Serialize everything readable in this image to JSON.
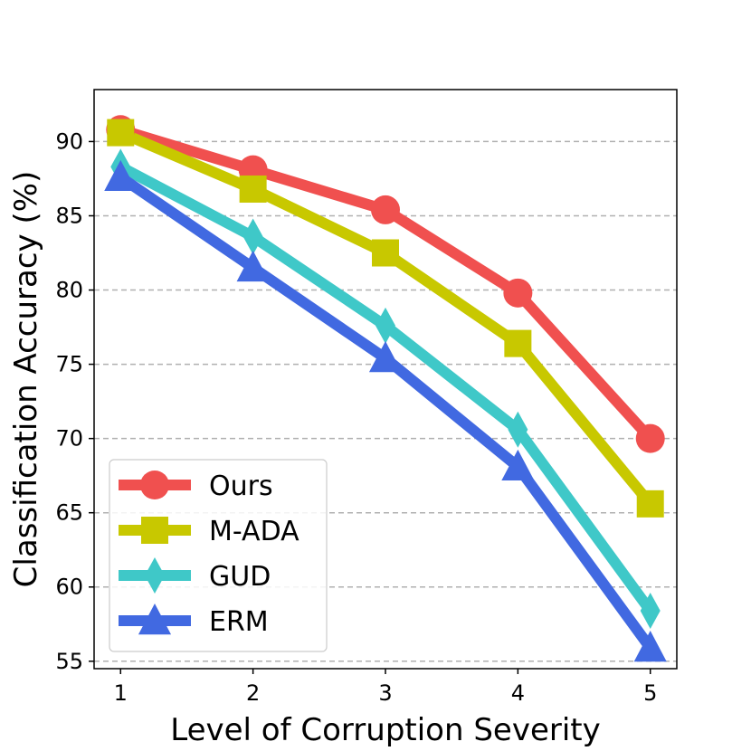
{
  "chart_data": {
    "type": "line",
    "title": "",
    "xlabel": "Level of Corruption Severity",
    "ylabel": "Classification Accuracy (%)",
    "x": [
      1,
      2,
      3,
      4,
      5
    ],
    "x_tick_labels": [
      "1",
      "2",
      "3",
      "4",
      "5"
    ],
    "xlim": [
      0.8,
      5.2
    ],
    "ylim": [
      54.5,
      93.5
    ],
    "y_ticks": [
      55,
      60,
      65,
      70,
      75,
      80,
      85,
      90
    ],
    "y_tick_labels": [
      "55",
      "60",
      "65",
      "70",
      "75",
      "80",
      "85",
      "90"
    ],
    "grid": "horizontal dashed",
    "legend_position": "bottom-left",
    "series": [
      {
        "name": "Ours",
        "marker": "circle",
        "color": "#f0504f",
        "values": [
          90.8,
          88.1,
          85.4,
          79.8,
          70.0
        ]
      },
      {
        "name": "M-ADA",
        "marker": "square",
        "color": "#c8c800",
        "values": [
          90.6,
          86.8,
          82.5,
          76.4,
          65.6
        ]
      },
      {
        "name": "GUD",
        "marker": "diamond",
        "color": "#3fc8c8",
        "values": [
          88.3,
          83.6,
          77.6,
          70.6,
          58.4
        ]
      },
      {
        "name": "ERM",
        "marker": "triangle",
        "color": "#4169e1",
        "values": [
          87.6,
          81.5,
          75.4,
          68.1,
          55.9
        ]
      }
    ]
  }
}
